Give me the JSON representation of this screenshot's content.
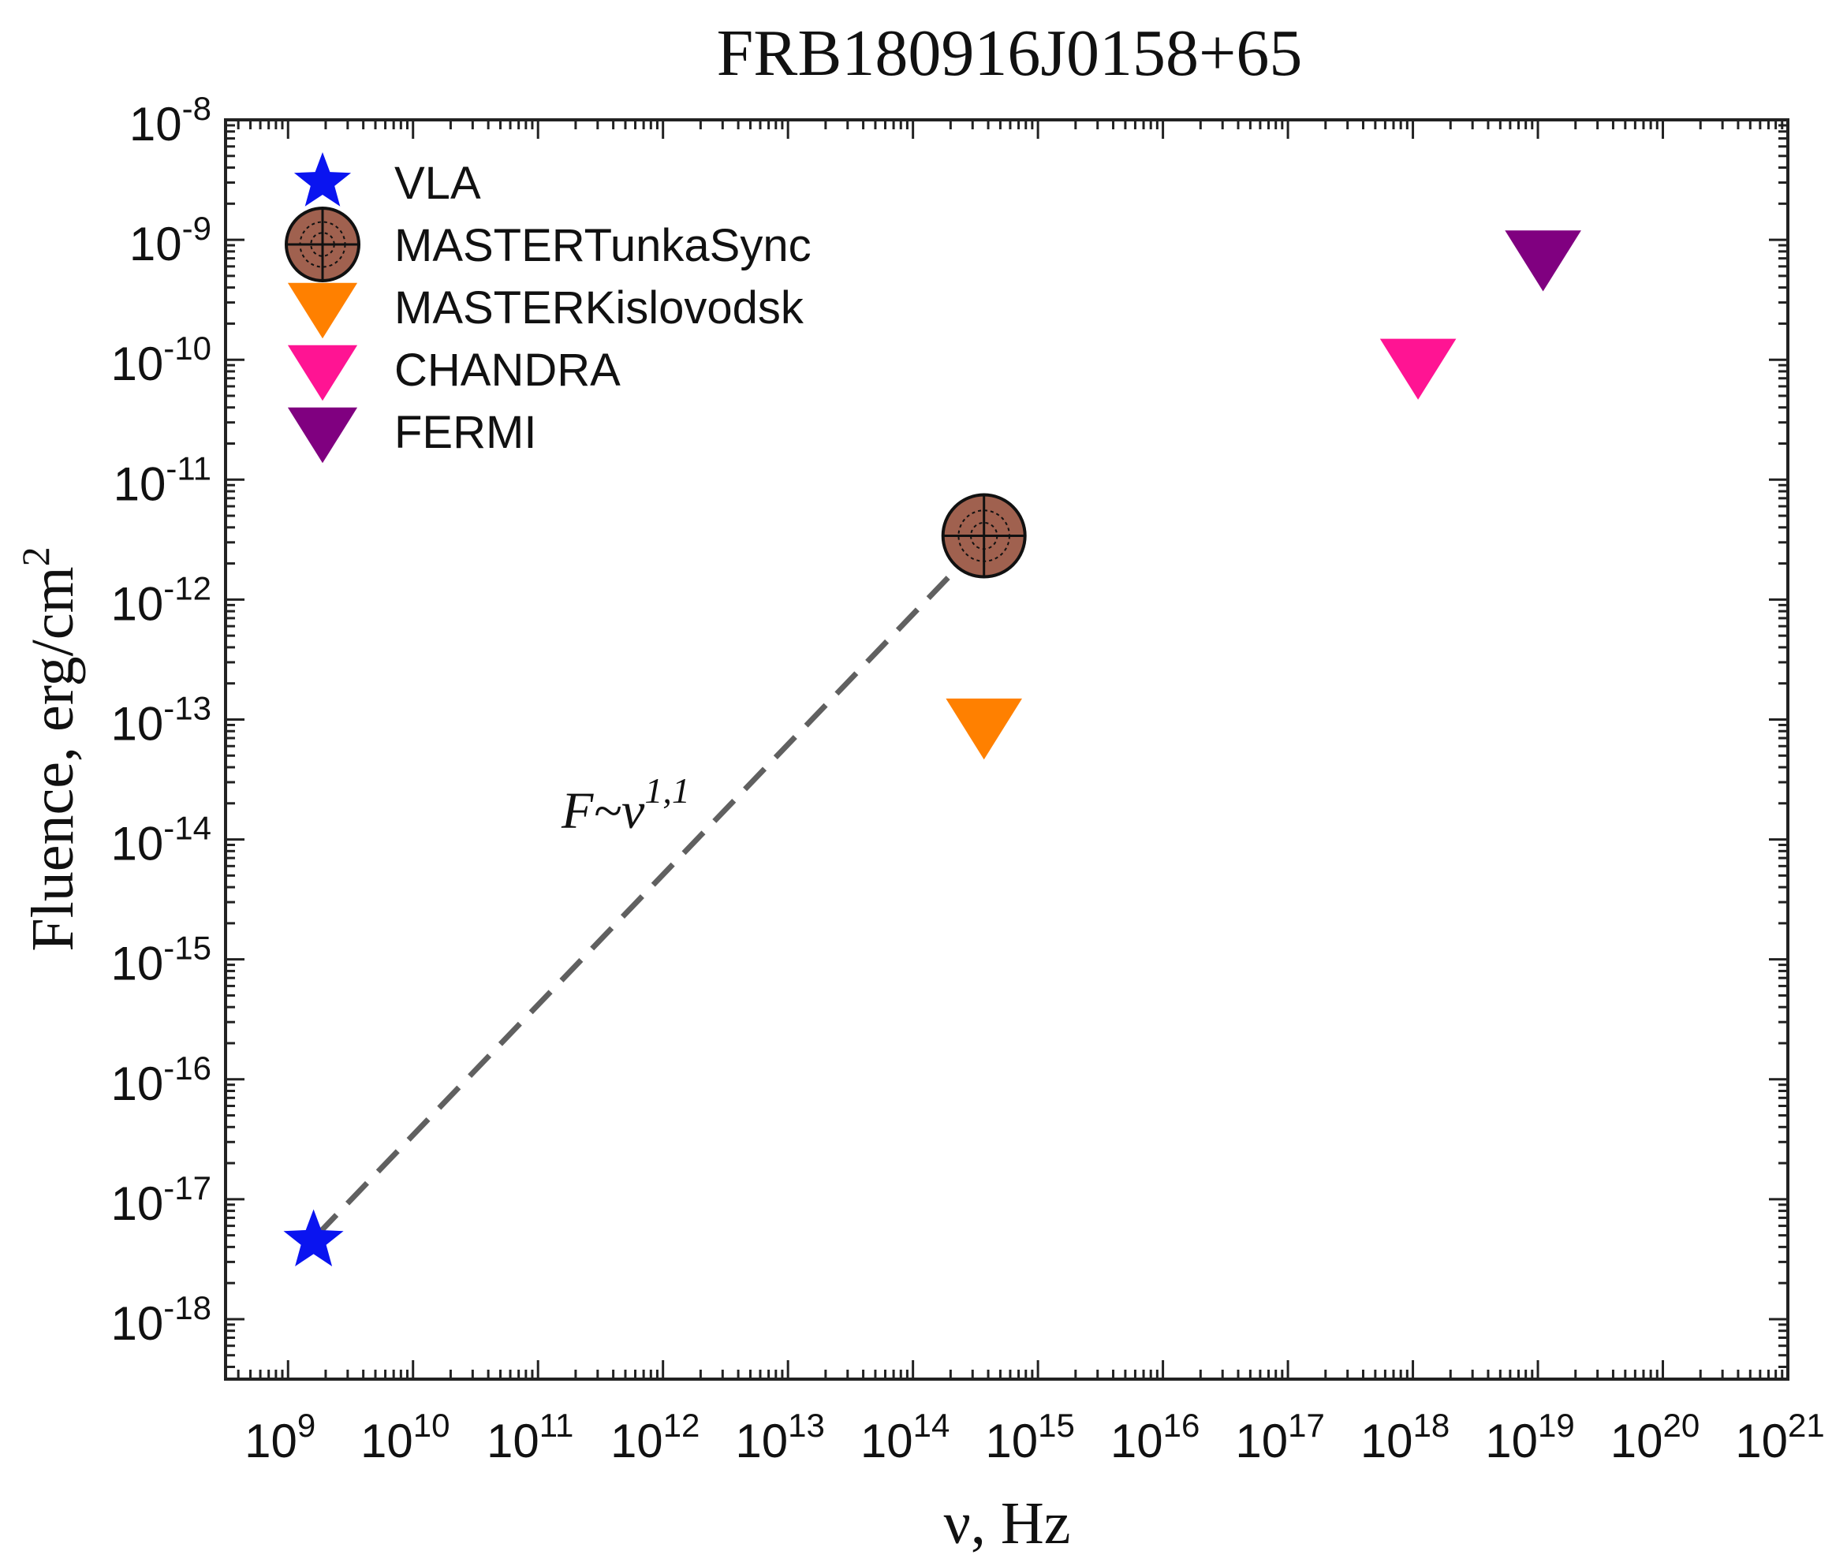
{
  "chart_data": {
    "type": "scatter",
    "title": "FRB180916J0158+65",
    "xlabel": "ν, Hz",
    "ylabel": "Fluence, erg/cm",
    "ylabel_sup": "2",
    "x_scale": "log",
    "y_scale": "log",
    "xlim_exp": [
      8.5,
      21.0
    ],
    "ylim_exp": [
      -18.5,
      -8.0
    ],
    "x_ticks": [
      {
        "base": "10",
        "exp": "9"
      },
      {
        "base": "10",
        "exp": "10"
      },
      {
        "base": "10",
        "exp": "11"
      },
      {
        "base": "10",
        "exp": "12"
      },
      {
        "base": "10",
        "exp": "13"
      },
      {
        "base": "10",
        "exp": "14"
      },
      {
        "base": "10",
        "exp": "15"
      },
      {
        "base": "10",
        "exp": "16"
      },
      {
        "base": "10",
        "exp": "17"
      },
      {
        "base": "10",
        "exp": "18"
      },
      {
        "base": "10",
        "exp": "19"
      },
      {
        "base": "10",
        "exp": "20"
      },
      {
        "base": "10",
        "exp": "21"
      }
    ],
    "y_ticks": [
      {
        "base": "10",
        "exp": "-8"
      },
      {
        "base": "10",
        "exp": "-9"
      },
      {
        "base": "10",
        "exp": "-10"
      },
      {
        "base": "10",
        "exp": "-11"
      },
      {
        "base": "10",
        "exp": "-12"
      },
      {
        "base": "10",
        "exp": "-13"
      },
      {
        "base": "10",
        "exp": "-14"
      },
      {
        "base": "10",
        "exp": "-15"
      },
      {
        "base": "10",
        "exp": "-16"
      },
      {
        "base": "10",
        "exp": "-17"
      },
      {
        "base": "10",
        "exp": "-18"
      }
    ],
    "legend_position": "top-left",
    "series": [
      {
        "name": "VLA",
        "marker": "star",
        "color": "#0a14f0",
        "x": 1600000000.0,
        "y": 4.5e-18
      },
      {
        "name": "MASTERTunkaSync",
        "marker": "target",
        "color": "#a0614f",
        "x": 370000000000000.0,
        "y": 3.4e-12
      },
      {
        "name": "MASTERKislovodsk",
        "marker": "triangle-down",
        "color": "#ff8000",
        "x": 370000000000000.0,
        "y": 1e-13
      },
      {
        "name": "CHANDRA",
        "marker": "triangle-down",
        "color": "#ff1493",
        "x": 1.1e+18,
        "y": 1e-10
      },
      {
        "name": "FERMI",
        "marker": "triangle-down",
        "color": "#800080",
        "x": 1.1e+19,
        "y": 8e-10
      }
    ],
    "fit_line": {
      "style": "dashed",
      "color": "#606060",
      "x": [
        1700000000.0,
        290000000000000.0
      ],
      "y": [
        5e-18,
        2.4e-12
      ],
      "label_text": "F~ν",
      "label_sup": "1,1"
    }
  }
}
